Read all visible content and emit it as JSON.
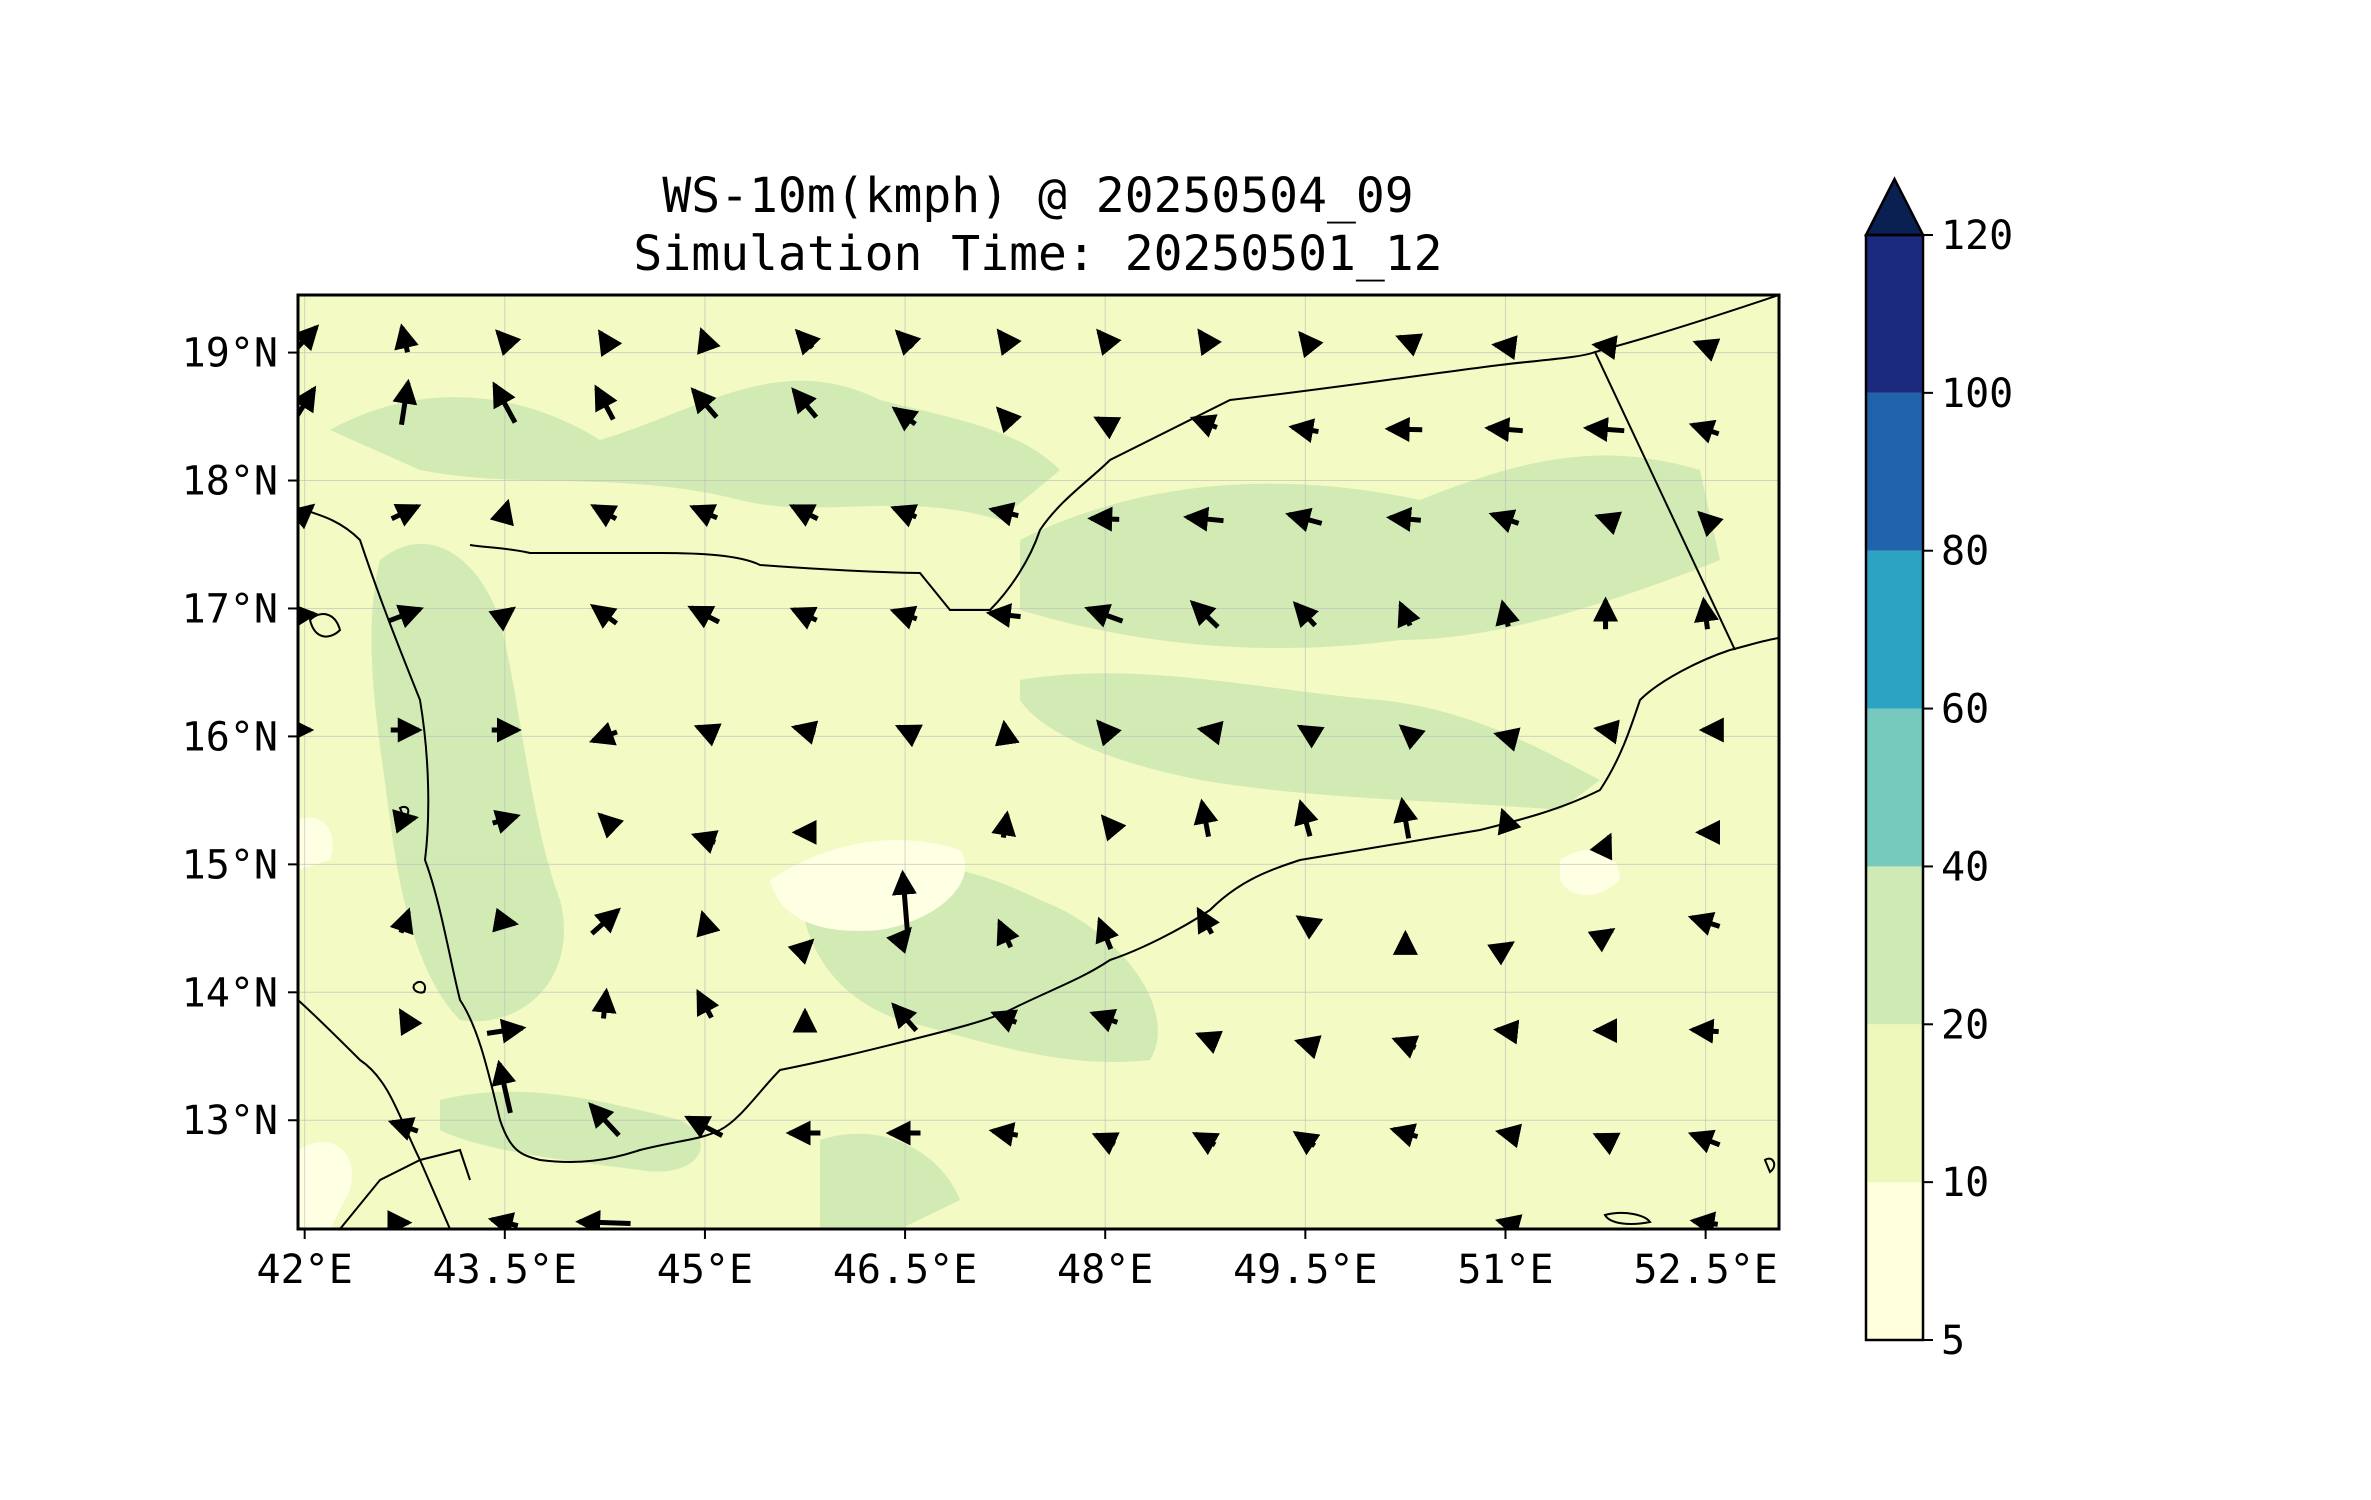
{
  "title": {
    "line1": "WS-10m(kmph) @ 20250504_09",
    "line2": "Simulation Time: 20250501_12"
  },
  "map": {
    "lon_range": [
      41.95,
      53.05
    ],
    "lat_range": [
      12.15,
      19.45
    ],
    "x_ticks": [
      {
        "value": 42.0,
        "label": "42°E"
      },
      {
        "value": 43.5,
        "label": "43.5°E"
      },
      {
        "value": 45.0,
        "label": "45°E"
      },
      {
        "value": 46.5,
        "label": "46.5°E"
      },
      {
        "value": 48.0,
        "label": "48°E"
      },
      {
        "value": 49.5,
        "label": "49.5°E"
      },
      {
        "value": 51.0,
        "label": "51°E"
      },
      {
        "value": 52.5,
        "label": "52.5°E"
      }
    ],
    "y_ticks": [
      {
        "value": 13,
        "label": "13°N"
      },
      {
        "value": 14,
        "label": "14°N"
      },
      {
        "value": 15,
        "label": "15°N"
      },
      {
        "value": 16,
        "label": "16°N"
      },
      {
        "value": 17,
        "label": "17°N"
      },
      {
        "value": 18,
        "label": "18°N"
      },
      {
        "value": 19,
        "label": "19°N"
      }
    ],
    "grid": true,
    "background_color": "#f3fac3",
    "pale_color": "#ffffe3",
    "shade_20_40_color": "#d2ebb5",
    "coastline_color": "#000000"
  },
  "colorbar": {
    "levels": [
      "5",
      "10",
      "20",
      "40",
      "60",
      "80",
      "100",
      "120"
    ],
    "colors": [
      "#ffffdb",
      "#eef8bb",
      "#cfeab4",
      "#76c9bd",
      "#2da3c3",
      "#2163aa",
      "#1b2a7e"
    ],
    "extend_color": "#0a1f52",
    "extend": "max"
  },
  "chart_data": {
    "type": "vector field",
    "variable": "WS-10m(kmph)",
    "valid_time": "20250504_09",
    "simulation_time": "20250501_12",
    "wind_vectors_note": "Each entry is [lon, lat, u, v] in degrees lon/lat per unit arrow (estimated from image).",
    "wind_vectors": [
      [
        42.0,
        19.1,
        0.25,
        0.28
      ],
      [
        42.75,
        19.1,
        -0.06,
        0.28
      ],
      [
        43.5,
        19.1,
        -0.15,
        0.17
      ],
      [
        44.25,
        19.1,
        -0.1,
        0.16
      ],
      [
        45.0,
        19.1,
        -0.07,
        0.2
      ],
      [
        45.75,
        19.1,
        -0.16,
        0.18
      ],
      [
        46.5,
        19.1,
        -0.16,
        0.17
      ],
      [
        47.25,
        19.1,
        -0.13,
        0.18
      ],
      [
        48.0,
        19.1,
        -0.14,
        0.18
      ],
      [
        48.75,
        19.1,
        -0.12,
        0.18
      ],
      [
        49.5,
        19.1,
        -0.1,
        0.13
      ],
      [
        50.25,
        19.1,
        -0.14,
        0.06
      ],
      [
        51.0,
        19.05,
        -0.22,
        0.03
      ],
      [
        51.75,
        19.05,
        -0.22,
        0.03
      ],
      [
        52.5,
        19.05,
        -0.2,
        0.08
      ],
      [
        42.0,
        18.6,
        0.2,
        0.33
      ],
      [
        42.75,
        18.6,
        0.07,
        0.47
      ],
      [
        43.5,
        18.6,
        -0.22,
        0.42
      ],
      [
        44.25,
        18.6,
        -0.18,
        0.35
      ],
      [
        45.0,
        18.6,
        -0.25,
        0.3
      ],
      [
        45.75,
        18.6,
        -0.24,
        0.3
      ],
      [
        46.5,
        18.5,
        -0.22,
        0.17
      ],
      [
        47.25,
        18.5,
        -0.14,
        0.16
      ],
      [
        48.0,
        18.45,
        -0.18,
        0.1
      ],
      [
        48.75,
        18.45,
        -0.25,
        0.1
      ],
      [
        49.5,
        18.4,
        -0.28,
        0.05
      ],
      [
        50.25,
        18.4,
        -0.36,
        0.01
      ],
      [
        51.0,
        18.4,
        -0.37,
        0.03
      ],
      [
        51.75,
        18.4,
        -0.4,
        0.03
      ],
      [
        52.5,
        18.4,
        -0.28,
        0.1
      ],
      [
        42.0,
        17.75,
        0.16,
        0.14
      ],
      [
        42.75,
        17.75,
        0.28,
        0.14
      ],
      [
        43.5,
        17.75,
        0.06,
        0.22
      ],
      [
        44.25,
        17.75,
        -0.24,
        0.14
      ],
      [
        45.0,
        17.75,
        -0.26,
        0.12
      ],
      [
        45.75,
        17.75,
        -0.27,
        0.14
      ],
      [
        46.5,
        17.75,
        -0.24,
        0.1
      ],
      [
        47.25,
        17.75,
        -0.28,
        0.07
      ],
      [
        48.0,
        17.7,
        -0.3,
        0.01
      ],
      [
        48.75,
        17.7,
        -0.39,
        0.04
      ],
      [
        49.5,
        17.7,
        -0.35,
        0.1
      ],
      [
        50.25,
        17.7,
        -0.33,
        0.03
      ],
      [
        51.0,
        17.7,
        -0.28,
        0.1
      ],
      [
        51.75,
        17.7,
        -0.16,
        0.06
      ],
      [
        52.5,
        17.7,
        -0.12,
        0.12
      ],
      [
        42.0,
        16.95,
        0.2,
        0.02
      ],
      [
        42.75,
        16.95,
        0.33,
        0.13
      ],
      [
        43.5,
        16.95,
        0.17,
        0.13
      ],
      [
        44.25,
        16.95,
        -0.25,
        0.19
      ],
      [
        45.0,
        16.95,
        -0.3,
        0.16
      ],
      [
        45.75,
        16.95,
        -0.25,
        0.12
      ],
      [
        46.5,
        16.95,
        -0.25,
        0.09
      ],
      [
        47.25,
        16.95,
        -0.33,
        0.04
      ],
      [
        48.0,
        16.95,
        -0.37,
        0.14
      ],
      [
        48.75,
        16.95,
        -0.27,
        0.27
      ],
      [
        49.5,
        16.95,
        -0.21,
        0.24
      ],
      [
        50.25,
        16.95,
        -0.1,
        0.24
      ],
      [
        51.0,
        16.95,
        -0.06,
        0.26
      ],
      [
        51.75,
        16.95,
        0.0,
        0.32
      ],
      [
        52.5,
        16.95,
        -0.04,
        0.32
      ],
      [
        42.0,
        16.05,
        0.12,
        0.0
      ],
      [
        42.75,
        16.05,
        0.3,
        0.0
      ],
      [
        43.5,
        16.05,
        0.28,
        0.0
      ],
      [
        44.25,
        16.0,
        -0.26,
        -0.1
      ],
      [
        45.0,
        16.05,
        -0.16,
        0.07
      ],
      [
        45.75,
        16.05,
        -0.22,
        0.06
      ],
      [
        46.5,
        16.05,
        -0.14,
        0.07
      ],
      [
        47.25,
        16.05,
        -0.02,
        0.14
      ],
      [
        48.0,
        16.05,
        -0.14,
        0.17
      ],
      [
        48.75,
        16.05,
        -0.1,
        0.02
      ],
      [
        49.5,
        16.05,
        -0.11,
        0.07
      ],
      [
        50.25,
        16.05,
        -0.08,
        0.07
      ],
      [
        51.0,
        16.0,
        -0.18,
        0.05
      ],
      [
        51.75,
        16.05,
        -0.18,
        0.03
      ],
      [
        52.5,
        16.05,
        -0.06,
        0.0
      ],
      [
        42.75,
        15.35,
        0.22,
        0.04
      ],
      [
        43.5,
        15.35,
        0.26,
        0.08
      ],
      [
        44.25,
        15.35,
        -0.1,
        0.1
      ],
      [
        45.0,
        15.2,
        -0.22,
        0.08
      ],
      [
        45.75,
        15.25,
        -0.2,
        0.0
      ],
      [
        46.5,
        14.7,
        -0.05,
        0.65
      ],
      [
        47.25,
        15.3,
        0.04,
        0.26
      ],
      [
        48.0,
        15.35,
        -0.04,
        0.05
      ],
      [
        48.75,
        15.35,
        -0.07,
        0.38
      ],
      [
        49.5,
        15.35,
        -0.1,
        0.37
      ],
      [
        50.25,
        15.35,
        -0.07,
        0.42
      ],
      [
        51.0,
        15.35,
        -0.06,
        0.18
      ],
      [
        51.75,
        15.15,
        0.09,
        0.2
      ],
      [
        52.5,
        15.25,
        -0.14,
        0.0
      ],
      [
        42.75,
        14.55,
        0.08,
        0.24
      ],
      [
        43.5,
        14.55,
        0.22,
        -0.04
      ],
      [
        44.25,
        14.55,
        0.28,
        0.26
      ],
      [
        45.0,
        14.55,
        -0.05,
        0.18
      ],
      [
        45.75,
        14.35,
        0.14,
        0.14
      ],
      [
        46.5,
        14.45,
        0.09,
        0.11
      ],
      [
        47.25,
        14.45,
        -0.12,
        0.28
      ],
      [
        48.0,
        14.45,
        -0.12,
        0.32
      ],
      [
        48.75,
        14.55,
        -0.14,
        0.26
      ],
      [
        49.5,
        14.55,
        -0.14,
        0.1
      ],
      [
        50.25,
        14.45,
        0.0,
        0.02
      ],
      [
        51.0,
        14.35,
        0.13,
        0.09
      ],
      [
        51.75,
        14.45,
        0.14,
        0.1
      ],
      [
        52.5,
        14.55,
        -0.3,
        0.1
      ],
      [
        42.75,
        13.8,
        -0.08,
        0.14
      ],
      [
        43.5,
        13.7,
        0.38,
        0.06
      ],
      [
        44.25,
        13.9,
        0.03,
        0.3
      ],
      [
        45.0,
        13.9,
        -0.14,
        0.28
      ],
      [
        45.75,
        13.8,
        0.0,
        0.14
      ],
      [
        46.5,
        13.8,
        -0.24,
        0.28
      ],
      [
        47.25,
        13.8,
        -0.24,
        0.1
      ],
      [
        48.0,
        13.8,
        -0.26,
        0.1
      ],
      [
        48.75,
        13.65,
        -0.14,
        0.06
      ],
      [
        49.5,
        13.6,
        -0.16,
        0.05
      ],
      [
        50.25,
        13.6,
        -0.22,
        0.09
      ],
      [
        51.0,
        13.7,
        -0.18,
        0.02
      ],
      [
        51.75,
        13.7,
        -0.2,
        0.0
      ],
      [
        52.5,
        13.7,
        -0.28,
        0.02
      ],
      [
        42.75,
        12.95,
        -0.28,
        0.1
      ],
      [
        43.5,
        13.25,
        -0.12,
        0.55
      ],
      [
        44.25,
        13.0,
        -0.3,
        0.34
      ],
      [
        45.0,
        12.95,
        -0.37,
        0.2
      ],
      [
        45.75,
        12.9,
        -0.33,
        0.0
      ],
      [
        46.5,
        12.9,
        -0.33,
        0.0
      ],
      [
        47.25,
        12.9,
        -0.27,
        0.05
      ],
      [
        48.0,
        12.85,
        -0.21,
        0.1
      ],
      [
        48.75,
        12.85,
        -0.21,
        0.12
      ],
      [
        49.5,
        12.85,
        -0.2,
        0.14
      ],
      [
        50.25,
        12.9,
        -0.26,
        0.08
      ],
      [
        51.0,
        12.9,
        -0.14,
        0.03
      ],
      [
        51.75,
        12.85,
        -0.2,
        0.1
      ],
      [
        52.5,
        12.85,
        -0.3,
        0.12
      ],
      [
        42.75,
        12.2,
        0.08,
        0.0
      ],
      [
        43.5,
        12.2,
        -0.28,
        0.07
      ],
      [
        44.25,
        12.2,
        -0.55,
        0.02
      ],
      [
        51.0,
        12.2,
        -0.14,
        0.04
      ],
      [
        52.5,
        12.2,
        -0.26,
        0.04
      ]
    ]
  }
}
